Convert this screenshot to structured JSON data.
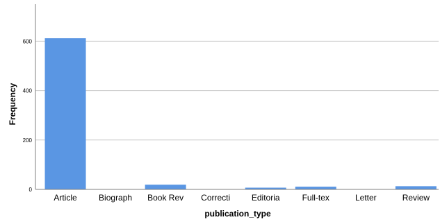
{
  "chart_data": {
    "type": "bar",
    "categories": [
      "Article",
      "Biograph",
      "Book Rev",
      "Correcti",
      "Editoria",
      "Full-tex",
      "Letter",
      "Review"
    ],
    "values": [
      612,
      1,
      19,
      1,
      7,
      11,
      1,
      13
    ],
    "xlabel": "publication_type",
    "ylabel": "Frequency",
    "ylim": [
      0,
      750
    ],
    "yticks": [
      0,
      200,
      400,
      600
    ],
    "grid": true,
    "legend": "none",
    "colors": {
      "bar": "#5a96e3",
      "grid": "#c8c8c8",
      "axis": "#7f7f7f"
    }
  }
}
